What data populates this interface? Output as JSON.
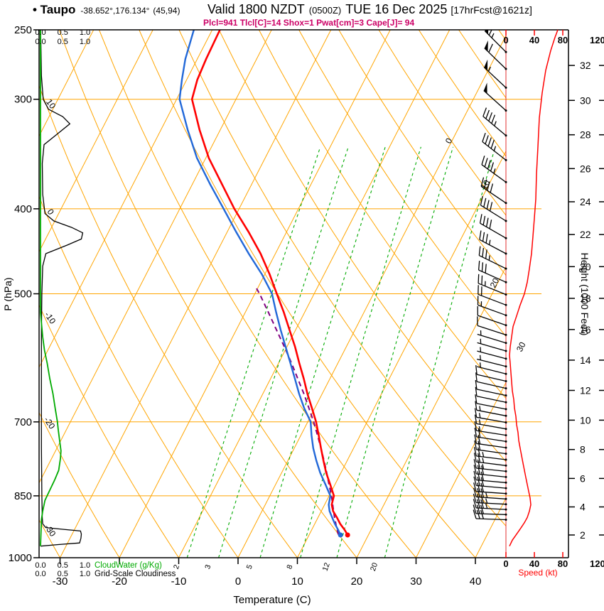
{
  "header": {
    "station": "• Taupo",
    "coords": "-38.652°,176.134°",
    "grid_ref": "(45,94)",
    "valid_main": "Valid 1800 NZDT",
    "valid_z": "(0500Z)",
    "valid_date": "TUE 16 Dec 2025",
    "fcst_tag": "[17hrFcst@1621z]",
    "params_line": "Plcl=941 Tlcl[C]=14 Shox=1 Pwat[cm]=3 Cape[J]= 94"
  },
  "axes": {
    "pressure_label": "P (hPa)",
    "pressure_ticks": [
      250,
      300,
      400,
      500,
      700,
      850,
      1000
    ],
    "temp_label": "Temperature (C)",
    "temp_ticks": [
      -30,
      -20,
      -10,
      0,
      10,
      20,
      30,
      40
    ],
    "height_label": "Height (1000 Feet)",
    "height_ticks_kft": [
      2,
      4,
      6,
      8,
      10,
      12,
      14,
      16,
      18,
      20,
      22,
      24,
      26,
      28,
      30,
      32
    ],
    "speed_label": "Speed (kt)",
    "speed_ticks": [
      0,
      40,
      80,
      120
    ],
    "cloud_scale": [
      "0.0",
      "0.5",
      "1.0"
    ],
    "cloudwater_label": "CloudWater (g/Kg)",
    "cloudiness_label": "Grid-Scale Cloudiness"
  },
  "colors": {
    "grid": "#FFA500",
    "temperature": "#FF0000",
    "dewpoint": "#2268D8",
    "parcel": "#800080",
    "cloudwater": "#00AA00",
    "cloudiness": "#000000",
    "speed": "#FF0000",
    "params": "#CC0066",
    "mixing": "#00AA00"
  },
  "chart_data": {
    "type": "line",
    "subtype": "skew-T log-p sounding",
    "pressure_range_hpa": [
      250,
      1000
    ],
    "temp_axis_range_c": [
      -35,
      45
    ],
    "isotherm_label_values": [
      0,
      10,
      20,
      30
    ],
    "dry_adiabat_label_values": [
      10,
      0,
      -10,
      -20,
      -30
    ],
    "mixing_ratio_lines_gkg": [
      2,
      3,
      5,
      8,
      12,
      20
    ],
    "temperature_profile_p_c": [
      [
        942,
        16.5
      ],
      [
        930,
        15.6
      ],
      [
        915,
        14.3
      ],
      [
        900,
        13.2
      ],
      [
        885,
        12.0
      ],
      [
        870,
        11.2
      ],
      [
        850,
        10.8
      ],
      [
        825,
        9.2
      ],
      [
        800,
        7.5
      ],
      [
        775,
        6.0
      ],
      [
        750,
        4.5
      ],
      [
        725,
        3.0
      ],
      [
        700,
        1.4
      ],
      [
        675,
        -0.5
      ],
      [
        650,
        -2.5
      ],
      [
        625,
        -4.4
      ],
      [
        600,
        -6.5
      ],
      [
        575,
        -8.6
      ],
      [
        550,
        -11.0
      ],
      [
        525,
        -13.5
      ],
      [
        500,
        -16.3
      ],
      [
        475,
        -19.2
      ],
      [
        450,
        -22.5
      ],
      [
        425,
        -26.4
      ],
      [
        400,
        -30.8
      ],
      [
        375,
        -35.0
      ],
      [
        350,
        -39.5
      ],
      [
        325,
        -43.5
      ],
      [
        300,
        -47.4
      ],
      [
        285,
        -48.2
      ],
      [
        270,
        -48.5
      ],
      [
        250,
        -48.7
      ]
    ],
    "dewpoint_profile_p_c": [
      [
        942,
        15.3
      ],
      [
        930,
        14.5
      ],
      [
        915,
        13.4
      ],
      [
        900,
        12.4
      ],
      [
        885,
        11.4
      ],
      [
        870,
        10.7
      ],
      [
        850,
        10.2
      ],
      [
        825,
        8.4
      ],
      [
        800,
        6.5
      ],
      [
        775,
        4.8
      ],
      [
        750,
        3.2
      ],
      [
        725,
        1.8
      ],
      [
        700,
        0.5
      ],
      [
        675,
        -1.8
      ],
      [
        650,
        -3.9
      ],
      [
        625,
        -5.9
      ],
      [
        600,
        -8.0
      ],
      [
        575,
        -10.2
      ],
      [
        550,
        -12.5
      ],
      [
        525,
        -14.8
      ],
      [
        500,
        -17.1
      ],
      [
        475,
        -20.5
      ],
      [
        450,
        -24.5
      ],
      [
        425,
        -28.5
      ],
      [
        400,
        -32.6
      ],
      [
        375,
        -37.0
      ],
      [
        350,
        -41.5
      ],
      [
        325,
        -45.5
      ],
      [
        300,
        -49.5
      ],
      [
        285,
        -50.8
      ],
      [
        270,
        -52.0
      ],
      [
        250,
        -53.1
      ]
    ],
    "parcel_profile_p_c": [
      [
        941,
        14.9
      ],
      [
        920,
        13.8
      ],
      [
        900,
        12.8
      ],
      [
        875,
        11.6
      ],
      [
        850,
        10.4
      ],
      [
        825,
        9.0
      ],
      [
        800,
        7.6
      ],
      [
        775,
        6.1
      ],
      [
        750,
        4.5
      ],
      [
        725,
        2.8
      ],
      [
        700,
        1.0
      ],
      [
        675,
        -1.0
      ],
      [
        650,
        -3.1
      ],
      [
        625,
        -5.4
      ],
      [
        600,
        -7.8
      ],
      [
        575,
        -10.4
      ],
      [
        550,
        -13.2
      ],
      [
        525,
        -16.1
      ],
      [
        500,
        -19.2
      ],
      [
        490,
        -20.6
      ]
    ],
    "cloud_water_profile_p_gkg": [
      [
        970,
        0.0
      ],
      [
        940,
        0.01
      ],
      [
        905,
        0.02
      ],
      [
        885,
        0.05
      ],
      [
        860,
        0.1
      ],
      [
        835,
        0.22
      ],
      [
        815,
        0.32
      ],
      [
        795,
        0.41
      ],
      [
        770,
        0.45
      ],
      [
        755,
        0.46
      ],
      [
        735,
        0.43
      ],
      [
        715,
        0.4
      ],
      [
        700,
        0.38
      ],
      [
        675,
        0.33
      ],
      [
        650,
        0.28
      ],
      [
        625,
        0.21
      ],
      [
        600,
        0.15
      ],
      [
        580,
        0.09
      ],
      [
        560,
        0.05
      ],
      [
        540,
        0.02
      ],
      [
        525,
        0.0
      ],
      [
        250,
        0.0
      ]
    ],
    "cloudiness_profile_p_frac": [
      [
        970,
        0.0
      ],
      [
        966,
        0.4
      ],
      [
        962,
        0.88
      ],
      [
        950,
        0.91
      ],
      [
        940,
        0.92
      ],
      [
        932,
        0.9
      ],
      [
        928,
        0.5
      ],
      [
        924,
        0.12
      ],
      [
        915,
        0.05
      ],
      [
        900,
        0.04
      ],
      [
        850,
        0.03
      ],
      [
        750,
        0.02
      ],
      [
        650,
        0.02
      ],
      [
        550,
        0.02
      ],
      [
        500,
        0.03
      ],
      [
        465,
        0.05
      ],
      [
        450,
        0.12
      ],
      [
        440,
        0.6
      ],
      [
        433,
        0.92
      ],
      [
        426,
        0.95
      ],
      [
        420,
        0.7
      ],
      [
        413,
        0.3
      ],
      [
        405,
        0.1
      ],
      [
        385,
        0.05
      ],
      [
        355,
        0.04
      ],
      [
        338,
        0.08
      ],
      [
        328,
        0.4
      ],
      [
        320,
        0.66
      ],
      [
        314,
        0.5
      ],
      [
        308,
        0.18
      ],
      [
        300,
        0.06
      ],
      [
        282,
        0.02
      ],
      [
        260,
        0.01
      ],
      [
        250,
        0.0
      ]
    ],
    "wind_speed_profile_p_kt": [
      [
        970,
        5
      ],
      [
        955,
        9
      ],
      [
        940,
        15
      ],
      [
        925,
        21
      ],
      [
        912,
        26
      ],
      [
        900,
        30
      ],
      [
        885,
        33
      ],
      [
        870,
        35
      ],
      [
        855,
        34
      ],
      [
        840,
        32
      ],
      [
        825,
        30
      ],
      [
        810,
        28
      ],
      [
        795,
        26
      ],
      [
        780,
        24
      ],
      [
        765,
        22
      ],
      [
        750,
        20
      ],
      [
        735,
        18
      ],
      [
        720,
        17
      ],
      [
        705,
        15
      ],
      [
        690,
        14
      ],
      [
        675,
        12
      ],
      [
        660,
        11
      ],
      [
        645,
        9
      ],
      [
        630,
        8
      ],
      [
        615,
        7
      ],
      [
        600,
        6
      ],
      [
        588,
        5
      ],
      [
        575,
        6
      ],
      [
        560,
        8
      ],
      [
        545,
        10
      ],
      [
        530,
        15
      ],
      [
        515,
        20
      ],
      [
        500,
        26
      ],
      [
        485,
        30
      ],
      [
        468,
        33
      ],
      [
        450,
        36
      ],
      [
        430,
        38
      ],
      [
        410,
        40
      ],
      [
        390,
        42
      ],
      [
        365,
        43
      ],
      [
        340,
        45
      ],
      [
        315,
        47
      ],
      [
        295,
        51
      ],
      [
        278,
        56
      ],
      [
        264,
        63
      ],
      [
        255,
        69
      ],
      [
        250,
        73
      ]
    ],
    "wind_barbs_p_dir_kt": [
      [
        905,
        272,
        28
      ],
      [
        893,
        272,
        31
      ],
      [
        881,
        273,
        33
      ],
      [
        869,
        273,
        35
      ],
      [
        857,
        274,
        34
      ],
      [
        845,
        274,
        32
      ],
      [
        833,
        275,
        31
      ],
      [
        821,
        275,
        29
      ],
      [
        809,
        276,
        28
      ],
      [
        797,
        276,
        26
      ],
      [
        785,
        277,
        25
      ],
      [
        773,
        277,
        23
      ],
      [
        761,
        278,
        22
      ],
      [
        749,
        278,
        20
      ],
      [
        737,
        279,
        19
      ],
      [
        725,
        279,
        17
      ],
      [
        713,
        280,
        16
      ],
      [
        701,
        280,
        15
      ],
      [
        689,
        281,
        14
      ],
      [
        677,
        281,
        12
      ],
      [
        665,
        282,
        11
      ],
      [
        653,
        282,
        10
      ],
      [
        641,
        283,
        9
      ],
      [
        629,
        283,
        8
      ],
      [
        617,
        284,
        7
      ],
      [
        605,
        284,
        6
      ],
      [
        593,
        285,
        5
      ],
      [
        581,
        286,
        6
      ],
      [
        569,
        287,
        7
      ],
      [
        557,
        288,
        9
      ],
      [
        543,
        289,
        12
      ],
      [
        529,
        290,
        16
      ],
      [
        515,
        291,
        21
      ],
      [
        501,
        292,
        26
      ],
      [
        485,
        294,
        30
      ],
      [
        468,
        296,
        33
      ],
      [
        450,
        298,
        36
      ],
      [
        432,
        300,
        38
      ],
      [
        413,
        302,
        40
      ],
      [
        394,
        304,
        42
      ],
      [
        373,
        306,
        43
      ],
      [
        352,
        308,
        45
      ],
      [
        330,
        310,
        46
      ],
      [
        309,
        312,
        49
      ],
      [
        291,
        313,
        53
      ],
      [
        277,
        314,
        58
      ],
      [
        265,
        315,
        65
      ]
    ]
  }
}
